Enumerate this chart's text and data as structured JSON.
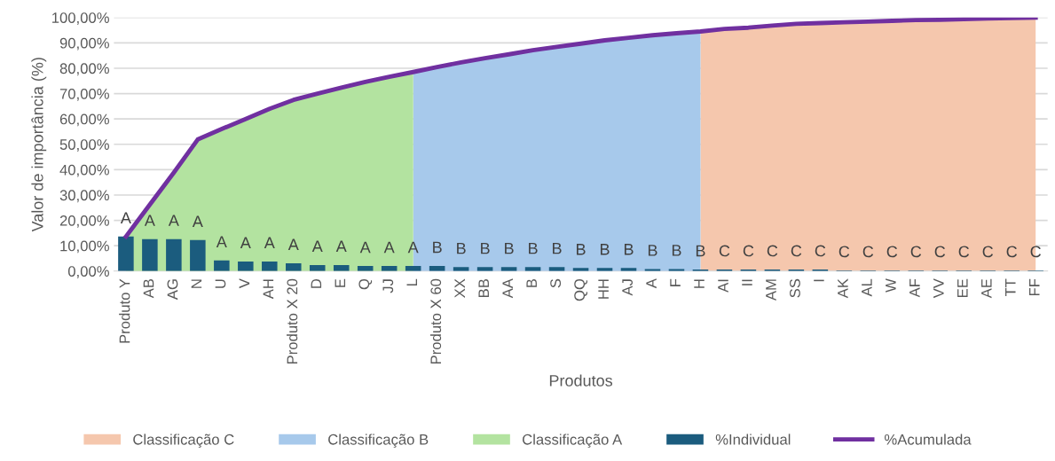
{
  "chart_data": {
    "type": "bar",
    "xlabel": "Produtos",
    "ylabel": "Valor de importância (%)",
    "categories": [
      "Produto Y",
      "AB",
      "AG",
      "N",
      "U",
      "V",
      "AH",
      "Produto X 20",
      "D",
      "E",
      "Q",
      "JJ",
      "L",
      "Produto X 60",
      "XX",
      "BB",
      "AA",
      "B",
      "S",
      "QQ",
      "HH",
      "AJ",
      "A",
      "F",
      "H",
      "AI",
      "II",
      "AM",
      "SS",
      "I",
      "AK",
      "AL",
      "W",
      "AF",
      "VV",
      "EE",
      "AE",
      "TT",
      "FF"
    ],
    "series": [
      {
        "name": "Classificação C",
        "type": "area",
        "color": "#f5c7ad",
        "values": [
          null,
          null,
          null,
          null,
          null,
          null,
          null,
          null,
          null,
          null,
          null,
          null,
          null,
          null,
          null,
          null,
          null,
          null,
          null,
          null,
          null,
          null,
          null,
          null,
          94.5,
          95.5,
          96,
          96.8,
          97.5,
          97.8,
          98.1,
          98.4,
          98.7,
          99,
          99.1,
          99.4,
          99.6,
          99.8,
          100
        ]
      },
      {
        "name": "Classificação B",
        "type": "area",
        "color": "#a7c9eb",
        "values": [
          null,
          null,
          null,
          null,
          null,
          null,
          null,
          null,
          null,
          null,
          null,
          null,
          78.5,
          80.5,
          82.3,
          84,
          85.5,
          87.1,
          88.4,
          89.7,
          91,
          92,
          93,
          93.8,
          94.5,
          null,
          null,
          null,
          null,
          null,
          null,
          null,
          null,
          null,
          null,
          null,
          null,
          null,
          null
        ]
      },
      {
        "name": "Classificação A",
        "type": "area",
        "color": "#b3e3a0",
        "values": [
          13.6,
          26.2,
          38.8,
          51.9,
          56,
          60,
          64,
          67.5,
          70,
          72.3,
          74.6,
          76.6,
          78.5,
          null,
          null,
          null,
          null,
          null,
          null,
          null,
          null,
          null,
          null,
          null,
          null,
          null,
          null,
          null,
          null,
          null,
          null,
          null,
          null,
          null,
          null,
          null,
          null,
          null,
          null
        ]
      },
      {
        "name": "%Individual",
        "color": "#1b5c7e",
        "values": [
          13.6,
          12.6,
          12.6,
          12.2,
          4.2,
          3.8,
          3.8,
          3.1,
          2.4,
          2.4,
          2.0,
          2.0,
          2.0,
          2.0,
          1.6,
          1.6,
          1.6,
          1.6,
          1.6,
          1.2,
          1.2,
          1.2,
          0.8,
          0.8,
          0.6,
          0.6,
          0.6,
          0.6,
          0.6,
          0.6,
          0.3,
          0.3,
          0.3,
          0.3,
          0.3,
          0.3,
          0.3,
          0.3,
          0.3
        ],
        "value_labels": [
          "A",
          "A",
          "A",
          "A",
          "A",
          "A",
          "A",
          "A",
          "A",
          "A",
          "A",
          "A",
          "A",
          "B",
          "B",
          "B",
          "B",
          "B",
          "B",
          "B",
          "B",
          "B",
          "B",
          "B",
          "B",
          "C",
          "C",
          "C",
          "C",
          "C",
          "C",
          "C",
          "C",
          "C",
          "C",
          "C",
          "C",
          "C",
          "C"
        ]
      },
      {
        "name": "%Acumulada",
        "type": "line",
        "color": "#7030a0",
        "values": [
          13.6,
          26.2,
          38.8,
          51.9,
          56,
          60,
          64,
          67.5,
          70,
          72.3,
          74.6,
          76.6,
          78.5,
          80.5,
          82.3,
          84,
          85.5,
          87.1,
          88.4,
          89.7,
          91,
          92,
          93,
          93.8,
          94.5,
          95.5,
          96,
          96.8,
          97.5,
          97.8,
          98.1,
          98.4,
          98.7,
          99,
          99.1,
          99.4,
          99.6,
          99.8,
          100
        ]
      }
    ],
    "ylim": [
      0,
      100
    ],
    "yticks": [
      {
        "value": 0,
        "label": "0,00%"
      },
      {
        "value": 10,
        "label": "10,00%"
      },
      {
        "value": 20,
        "label": "20,00%"
      },
      {
        "value": 30,
        "label": "30,00%"
      },
      {
        "value": 40,
        "label": "40,00%"
      },
      {
        "value": 50,
        "label": "50,00%"
      },
      {
        "value": 60,
        "label": "60,00%"
      },
      {
        "value": 70,
        "label": "70,00%"
      },
      {
        "value": 80,
        "label": "80,00%"
      },
      {
        "value": 90,
        "label": "90,00%"
      },
      {
        "value": 100,
        "label": "100,00%"
      }
    ],
    "grid": "y",
    "legend": "bottom"
  }
}
